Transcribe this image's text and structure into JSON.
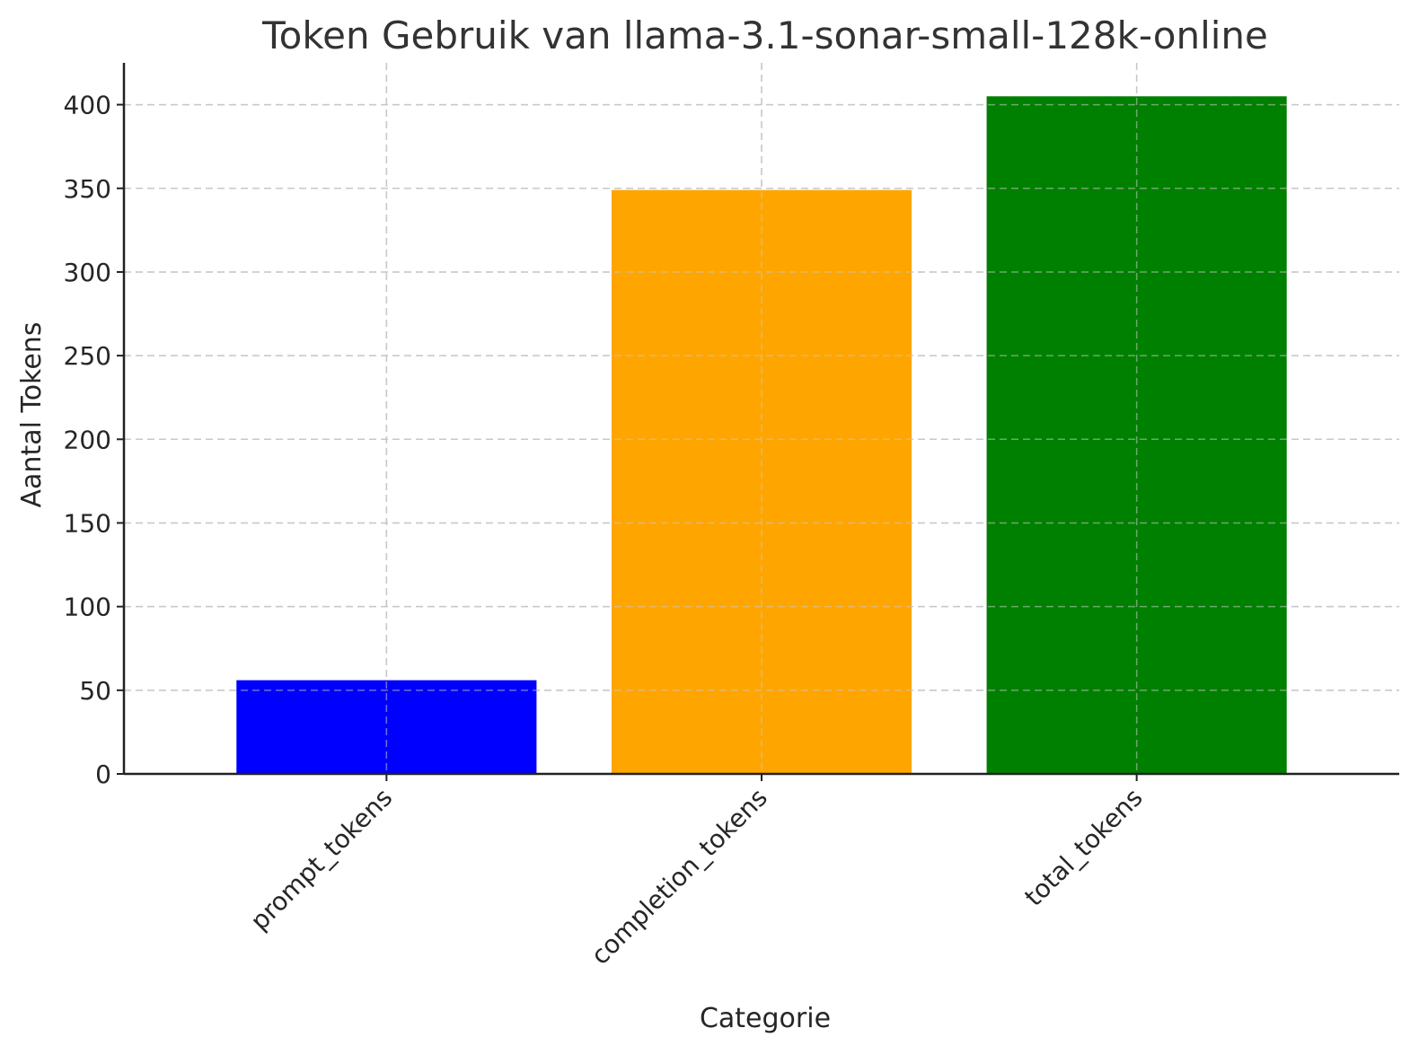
{
  "chart_data": {
    "type": "bar",
    "title": "Token Gebruik van llama-3.1-sonar-small-128k-online",
    "xlabel": "Categorie",
    "ylabel": "Aantal Tokens",
    "categories": [
      "prompt_tokens",
      "completion_tokens",
      "total_tokens"
    ],
    "values": [
      56,
      349,
      405
    ],
    "colors": [
      "#0000ff",
      "#ffa500",
      "#008000"
    ],
    "ylim": [
      0,
      425
    ],
    "yticks": [
      0,
      50,
      100,
      150,
      200,
      250,
      300,
      350,
      400
    ],
    "grid": true,
    "grid_style": "dashed",
    "legend": "none"
  }
}
